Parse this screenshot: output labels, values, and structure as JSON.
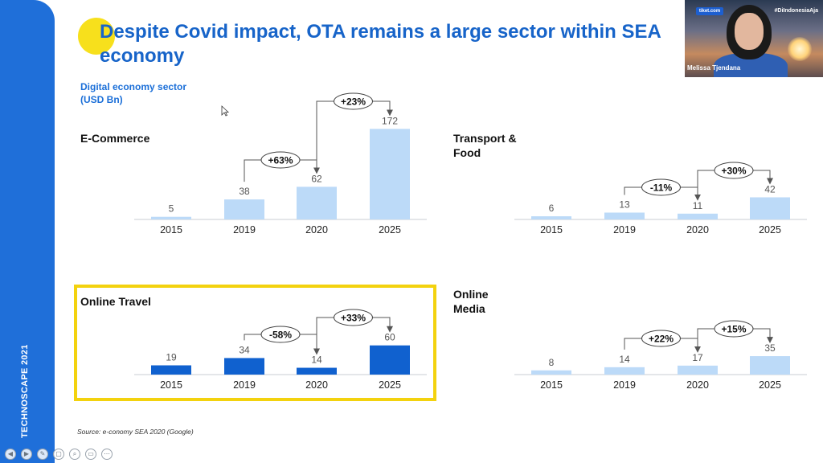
{
  "slide": {
    "title": "Despite Covid impact, OTA remains a large sector within SEA economy",
    "side_label": "TECHNOSCAPE 2021",
    "unit_label": "Digital economy sector (USD Bn)",
    "source": "Source: e-conomy SEA 2020 (Google)"
  },
  "colors": {
    "brand_blue": "#1f6fd9",
    "light_bar": "#bcdaf8",
    "dark_bar": "#1061cf",
    "highlight": "#f3d20e"
  },
  "webcam": {
    "name": "Melissa Tjendana",
    "hashtag": "#DiIndonesiaAja",
    "logo": "tiket.com"
  },
  "controls": [
    {
      "icon": "previous-icon",
      "glyph": "◀"
    },
    {
      "icon": "next-icon",
      "glyph": "▶"
    },
    {
      "icon": "pen-icon",
      "glyph": "✎"
    },
    {
      "icon": "eraser-icon",
      "glyph": "▢"
    },
    {
      "icon": "zoom-icon",
      "glyph": "⌕"
    },
    {
      "icon": "subtitles-icon",
      "glyph": "▭"
    },
    {
      "icon": "more-icon",
      "glyph": "⋯"
    }
  ],
  "chart_data": [
    {
      "type": "bar",
      "title": "E-Commerce",
      "categories": [
        "2015",
        "2019",
        "2020",
        "2025"
      ],
      "values": [
        5,
        38,
        62,
        172
      ],
      "bar_style": "light",
      "growth": [
        {
          "from": "2019",
          "to": "2020",
          "label": "+63%"
        },
        {
          "from": "2020",
          "to": "2025",
          "label": "+23%"
        }
      ]
    },
    {
      "type": "bar",
      "title": "Transport & Food",
      "categories": [
        "2015",
        "2019",
        "2020",
        "2025"
      ],
      "values": [
        6,
        13,
        11,
        42
      ],
      "bar_style": "light",
      "growth": [
        {
          "from": "2019",
          "to": "2020",
          "label": "-11%"
        },
        {
          "from": "2020",
          "to": "2025",
          "label": "+30%"
        }
      ]
    },
    {
      "type": "bar",
      "title": "Online Travel",
      "categories": [
        "2015",
        "2019",
        "2020",
        "2025"
      ],
      "values": [
        19,
        34,
        14,
        60
      ],
      "bar_style": "dark",
      "highlighted": true,
      "growth": [
        {
          "from": "2019",
          "to": "2020",
          "label": "-58%"
        },
        {
          "from": "2020",
          "to": "2025",
          "label": "+33%"
        }
      ]
    },
    {
      "type": "bar",
      "title": "Online Media",
      "categories": [
        "2015",
        "2019",
        "2020",
        "2025"
      ],
      "values": [
        8,
        14,
        17,
        35
      ],
      "bar_style": "light",
      "growth": [
        {
          "from": "2019",
          "to": "2020",
          "label": "+22%"
        },
        {
          "from": "2020",
          "to": "2025",
          "label": "+15%"
        }
      ]
    }
  ]
}
